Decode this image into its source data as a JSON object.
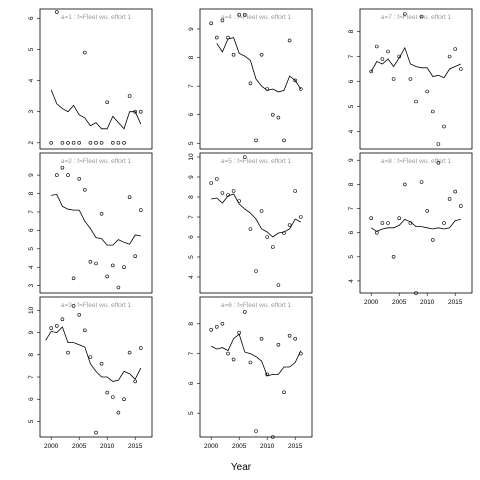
{
  "chart_data": {
    "type": "scatter",
    "xlabel": "Year",
    "ylabel": "",
    "xlim": [
      1998,
      2018
    ],
    "x_ticks": [
      2000,
      2005,
      2010,
      2015
    ],
    "years": [
      1999,
      2000,
      2001,
      2002,
      2003,
      2004,
      2005,
      2006,
      2007,
      2008,
      2009,
      2010,
      2011,
      2012,
      2013,
      2014,
      2015,
      2016
    ],
    "panels": [
      {
        "label": "a=1 : f=Fleet wo. effort 1",
        "column": 0,
        "row": 0,
        "ylim": [
          1.8,
          6.3
        ],
        "y_ticks": [
          2,
          3,
          4,
          5,
          6
        ],
        "points": [
          2.0,
          6.2,
          2.0,
          2.0,
          2.0,
          2.0,
          4.9,
          2.0,
          2.0,
          2.0,
          3.3,
          2.0,
          2.0,
          2.0,
          3.5,
          3.0,
          3.0
        ],
        "fit": [
          3.7,
          3.25,
          3.1,
          3.0,
          3.2,
          2.9,
          2.8,
          2.55,
          2.65,
          2.45,
          2.45,
          2.85,
          2.65,
          2.45,
          3.0,
          3.0,
          2.6
        ]
      },
      {
        "label": "a=2 : f=Fleet wo. effort 1",
        "column": 0,
        "row": 1,
        "ylim": [
          2.6,
          10.2
        ],
        "y_ticks": [
          3,
          4,
          5,
          6,
          7,
          8,
          9
        ],
        "points": [
          9.0,
          9.4,
          9.0,
          3.4,
          8.8,
          8.2,
          4.3,
          4.2,
          6.9,
          3.5,
          4.1,
          2.9,
          4.0,
          7.8,
          4.6,
          7.1
        ],
        "fit": [
          7.9,
          7.95,
          7.3,
          7.15,
          7.1,
          7.1,
          6.5,
          6.1,
          5.6,
          5.55,
          5.2,
          5.2,
          5.5,
          5.35,
          5.25,
          5.75,
          5.7
        ]
      },
      {
        "label": "a=3 : f=Fleet wo. effort 1",
        "column": 0,
        "row": 2,
        "ylim": [
          4.3,
          10.6
        ],
        "y_ticks": [
          5,
          6,
          7,
          8,
          9,
          10
        ],
        "points": [
          9.2,
          9.3,
          9.6,
          8.1,
          10.2,
          9.8,
          9.1,
          7.9,
          4.5,
          7.6,
          6.3,
          6.1,
          5.4,
          6.0,
          8.1,
          6.8,
          8.3
        ],
        "fit": [
          8.65,
          9.05,
          9.0,
          9.25,
          8.55,
          8.55,
          8.45,
          8.35,
          7.6,
          7.25,
          7.0,
          7.0,
          6.8,
          6.85,
          7.25,
          7.15,
          6.9,
          7.4
        ]
      },
      {
        "label": "a=4 : f=Fleet wo. effort 1",
        "column": 1,
        "row": 0,
        "ylim": [
          4.8,
          9.7
        ],
        "y_ticks": [
          5,
          6,
          7,
          8,
          9
        ],
        "points": [
          9.2,
          8.7,
          9.3,
          8.7,
          8.1,
          9.5,
          9.5,
          7.1,
          5.1,
          8.1,
          6.9,
          6.0,
          5.9,
          5.1,
          8.6,
          7.2,
          6.9
        ],
        "fit": [
          8.5,
          8.2,
          8.65,
          8.7,
          8.15,
          8.05,
          7.9,
          7.25,
          7.0,
          6.85,
          6.9,
          6.8,
          6.85,
          7.35,
          7.2,
          6.9
        ]
      },
      {
        "label": "a=5 : f=Fleet wo. effort 1",
        "column": 1,
        "row": 1,
        "ylim": [
          3.2,
          10.2
        ],
        "y_ticks": [
          4,
          5,
          6,
          7,
          8,
          9,
          10
        ],
        "points": [
          8.7,
          8.9,
          8.2,
          8.1,
          8.3,
          7.8,
          10.0,
          6.4,
          4.3,
          7.3,
          6.0,
          5.5,
          3.6,
          6.2,
          6.6,
          8.3,
          7.0
        ],
        "fit": [
          7.9,
          7.95,
          7.7,
          8.05,
          8.15,
          7.65,
          7.4,
          7.2,
          6.9,
          6.4,
          6.25,
          6.0,
          6.2,
          6.25,
          6.4,
          6.9,
          6.75
        ]
      },
      {
        "label": "a=6 : f=Fleet wo. effort 1",
        "column": 1,
        "row": 2,
        "ylim": [
          4.2,
          8.9
        ],
        "y_ticks": [
          5,
          6,
          7,
          8
        ],
        "points": [
          7.8,
          7.9,
          8.0,
          7.0,
          6.8,
          7.7,
          8.4,
          6.7,
          4.4,
          7.5,
          6.3,
          4.2,
          7.3,
          5.7,
          7.6,
          7.5,
          7.0
        ],
        "fit": [
          7.25,
          7.15,
          7.2,
          7.1,
          7.5,
          7.65,
          7.05,
          7.0,
          6.9,
          6.75,
          6.25,
          6.3,
          6.3,
          6.55,
          6.55,
          6.7,
          7.1
        ]
      },
      {
        "label": "a=7 : f=Fleet wo. effort 1",
        "column": 2,
        "row": 0,
        "ylim": [
          3.3,
          8.9
        ],
        "y_ticks": [
          4,
          5,
          6,
          7,
          8
        ],
        "points": [
          6.4,
          7.4,
          6.9,
          7.2,
          6.1,
          7.0,
          8.7,
          6.1,
          5.2,
          8.6,
          5.6,
          4.8,
          3.5,
          4.2,
          7.0,
          7.3,
          6.5
        ],
        "fit": [
          6.4,
          6.8,
          6.7,
          6.9,
          6.6,
          6.95,
          7.35,
          6.7,
          6.6,
          6.55,
          6.55,
          6.2,
          6.25,
          6.15,
          6.5,
          6.6,
          6.7
        ]
      },
      {
        "label": "a=8 : f=Fleet wo. effort 1",
        "column": 2,
        "row": 1,
        "ylim": [
          3.5,
          9.3
        ],
        "y_ticks": [
          4,
          5,
          6,
          7,
          8,
          9
        ],
        "points": [
          6.6,
          6.0,
          6.4,
          6.4,
          5.0,
          6.6,
          8.0,
          6.4,
          3.5,
          8.1,
          6.9,
          5.7,
          8.9,
          6.4,
          7.4,
          7.7,
          7.1
        ],
        "fit": [
          6.2,
          6.05,
          6.15,
          6.2,
          6.2,
          6.3,
          6.55,
          6.45,
          6.25,
          6.25,
          6.2,
          6.15,
          6.2,
          6.15,
          6.2,
          6.5,
          6.55
        ]
      }
    ]
  }
}
